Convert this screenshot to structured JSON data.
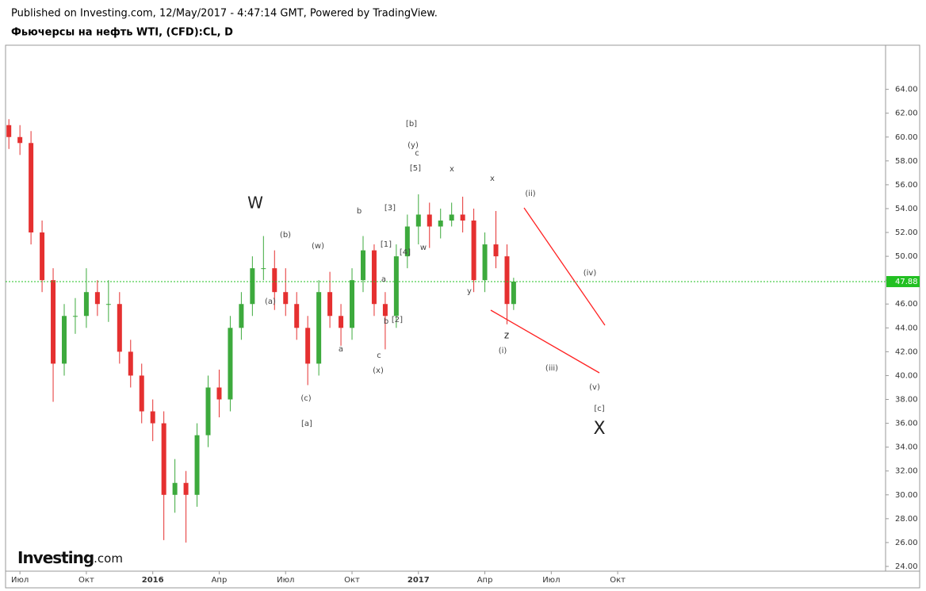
{
  "header": {
    "published": "Published on Investing.com, 12/May/2017 - 4:47:14 GMT, Powered by TradingView.",
    "title": "Фьючерсы на нефть WTI, (CFD):CL, D",
    "logo": "Investing",
    "logo_suffix": ".com"
  },
  "chart_data": {
    "type": "candlestick",
    "x": [
      -0.5,
      0,
      0.5,
      1,
      1.5,
      2,
      2.5,
      3,
      3.5,
      4,
      4.5,
      5,
      5.5,
      6,
      6.5,
      7,
      7.5,
      8,
      8.5,
      9,
      9.5,
      10,
      10.5,
      11,
      11.5,
      12,
      12.5,
      13,
      13.5,
      14,
      14.5,
      15,
      15.5,
      16,
      16.5,
      17,
      17.5,
      18,
      18.5,
      19,
      19.5,
      20,
      20.5,
      21,
      21.5,
      22,
      22.3
    ],
    "open": [
      61,
      60,
      59.5,
      52,
      48,
      41,
      45,
      45,
      47,
      46,
      46,
      42,
      40,
      37,
      36,
      30,
      31,
      30,
      35,
      39,
      38,
      44,
      46,
      49,
      49,
      47,
      46,
      44,
      41,
      47,
      45,
      44,
      48,
      50.5,
      46,
      45,
      50,
      52.5,
      53.5,
      52.5,
      53,
      53.5,
      53,
      48,
      51,
      50,
      46
    ],
    "high": [
      61.5,
      61,
      60.5,
      53,
      49,
      46,
      46.5,
      49,
      48,
      48,
      47,
      43,
      41,
      38,
      37,
      33,
      32,
      36,
      40,
      40.5,
      45,
      47,
      50,
      51.7,
      50.5,
      49,
      47,
      45,
      48,
      48.7,
      46,
      49,
      51.7,
      51,
      47,
      51,
      53.5,
      55.2,
      54.5,
      54,
      54.5,
      55,
      54,
      52,
      53.8,
      51,
      48.2
    ],
    "low": [
      59,
      58.5,
      51,
      47,
      37.8,
      40,
      43.5,
      44,
      45,
      44.5,
      41,
      39,
      36,
      34.5,
      26.2,
      28.5,
      26,
      29,
      34,
      36.5,
      37,
      43,
      45,
      48,
      45.5,
      45,
      43,
      39.2,
      40,
      44,
      42.5,
      43,
      47,
      45,
      42.2,
      44,
      49,
      51,
      50.7,
      51.5,
      52.5,
      52,
      47,
      47,
      49,
      44.3,
      45.5
    ],
    "close": [
      60,
      59.5,
      52,
      48,
      41,
      45,
      45,
      47,
      46,
      46,
      42,
      40,
      37,
      36,
      30,
      31,
      30,
      35,
      39,
      38,
      44,
      46,
      49,
      49,
      47,
      46,
      44,
      41,
      47,
      45,
      44,
      48,
      50.5,
      46,
      45,
      50,
      52.5,
      53.5,
      52.5,
      53,
      53.5,
      53,
      48,
      51,
      50,
      46,
      47.88
    ],
    "up_color": "#3daa3d",
    "down_color": "#e53030",
    "last_price": 47.88,
    "last_color": "#22c022",
    "xlim": [
      -0.65,
      39.1
    ],
    "xticks": [
      {
        "value": 0,
        "label": "Июл"
      },
      {
        "value": 3,
        "label": "Окт"
      },
      {
        "value": 6,
        "label": "2016"
      },
      {
        "value": 9,
        "label": "Апр"
      },
      {
        "value": 12,
        "label": "Июл"
      },
      {
        "value": 15,
        "label": "Окт"
      },
      {
        "value": 18,
        "label": "2017"
      },
      {
        "value": 21,
        "label": "Апр"
      },
      {
        "value": 24,
        "label": "Июл"
      },
      {
        "value": 27,
        "label": "Окт"
      }
    ],
    "ylim": [
      23.6,
      67.7
    ],
    "yticks": [
      {
        "value": 24,
        "label": "24.00"
      },
      {
        "value": 26,
        "label": "26.00"
      },
      {
        "value": 28,
        "label": "28.00"
      },
      {
        "value": 30,
        "label": "30.00"
      },
      {
        "value": 32,
        "label": "32.00"
      },
      {
        "value": 34,
        "label": "34.00"
      },
      {
        "value": 36,
        "label": "36.00"
      },
      {
        "value": 38,
        "label": "38.00"
      },
      {
        "value": 40,
        "label": "40.00"
      },
      {
        "value": 42,
        "label": "42.00"
      },
      {
        "value": 44,
        "label": "44.00"
      },
      {
        "value": 46,
        "label": "46.00"
      },
      {
        "value": 48,
        "label": "48.00"
      },
      {
        "value": 50,
        "label": "50.00"
      },
      {
        "value": 52,
        "label": "52.00"
      },
      {
        "value": 54,
        "label": "54.00"
      },
      {
        "value": 56,
        "label": "56.00"
      },
      {
        "value": 58,
        "label": "58.00"
      },
      {
        "value": 60,
        "label": "60.00"
      },
      {
        "value": 62,
        "label": "62.00"
      },
      {
        "value": 64,
        "label": "64.00"
      }
    ],
    "annotations": [
      "W",
      "(b)",
      "(w)",
      "b",
      "[3]",
      "[1]",
      "[4]",
      "w",
      "[b]",
      "(y)",
      "c",
      "[5]",
      "x",
      "x",
      "(ii)",
      "(a)",
      "a",
      "b",
      "[2]",
      "a",
      "c",
      "(x)",
      "(c)",
      "[a]",
      "y",
      "(iv)",
      "z",
      "(i)",
      "(iii)",
      "(v)",
      "[c]",
      "X"
    ]
  }
}
